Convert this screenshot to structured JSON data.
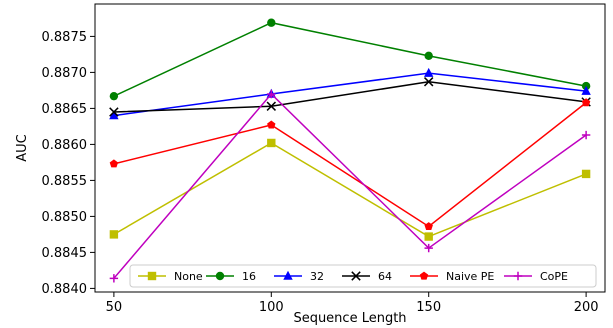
{
  "chart_data": {
    "type": "line",
    "xlabel": "Sequence Length",
    "ylabel": "AUC",
    "x": [
      50,
      100,
      150,
      200
    ],
    "xticks": [
      "50",
      "100",
      "150",
      "200"
    ],
    "yticks": [
      "0.8840",
      "0.8845",
      "0.8850",
      "0.8855",
      "0.8860",
      "0.8865",
      "0.8870",
      "0.8875"
    ],
    "ylim": [
      0.88395,
      0.88795
    ],
    "xlim": [
      44,
      206
    ],
    "grid": false,
    "legend_position": "bottom",
    "series": [
      {
        "name": "None",
        "color": "#bfbf00",
        "marker": "square",
        "values": [
          0.88475,
          0.88602,
          0.88472,
          0.88559
        ]
      },
      {
        "name": "16",
        "color": "#008000",
        "marker": "circle",
        "values": [
          0.88667,
          0.88769,
          0.88723,
          0.88681
        ]
      },
      {
        "name": "32",
        "color": "#0000ff",
        "marker": "triangle",
        "values": [
          0.8864,
          0.8867,
          0.88699,
          0.88674
        ]
      },
      {
        "name": "64",
        "color": "#000000",
        "marker": "x",
        "values": [
          0.88645,
          0.88653,
          0.88687,
          0.88659
        ]
      },
      {
        "name": "Naive PE",
        "color": "#ff0000",
        "marker": "pentagon",
        "values": [
          0.88573,
          0.88627,
          0.88486,
          0.88658
        ]
      },
      {
        "name": "CoPE",
        "color": "#bf00bf",
        "marker": "plus",
        "values": [
          0.88414,
          0.8867,
          0.88456,
          0.88613
        ]
      }
    ]
  }
}
